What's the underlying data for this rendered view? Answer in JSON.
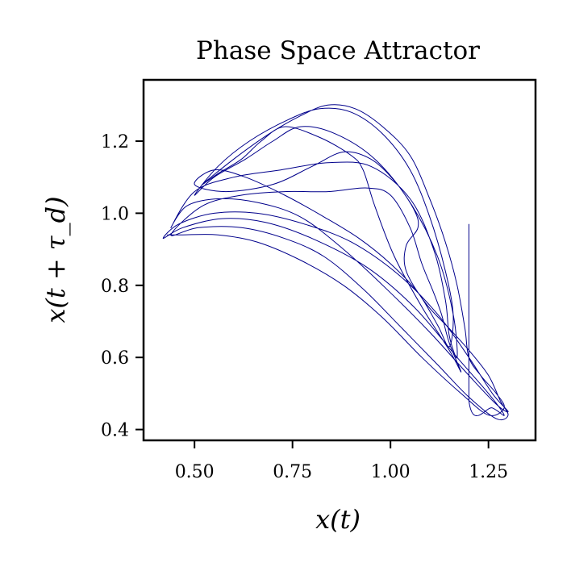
{
  "chart_data": {
    "type": "line",
    "title": "Phase Space Attractor",
    "xlabel": "x(t)",
    "ylabel": "x(t + τ_d)",
    "xlim": [
      0.37,
      1.37
    ],
    "ylim": [
      0.37,
      1.37
    ],
    "xticks": [
      0.5,
      0.75,
      1.0,
      1.25
    ],
    "yticks": [
      0.4,
      0.6,
      0.8,
      1.0,
      1.2
    ],
    "xtick_labels": [
      "0.50",
      "0.75",
      "1.00",
      "1.25"
    ],
    "ytick_labels": [
      "0.4",
      "0.6",
      "0.8",
      "1.0",
      "1.2"
    ],
    "grid": false,
    "line_color": "#00008b",
    "series": [
      {
        "points": [
          [
            1.2,
            0.97
          ],
          [
            1.2,
            0.48
          ],
          [
            1.26,
            0.46
          ],
          [
            1.29,
            0.44
          ],
          [
            1.25,
            0.5
          ],
          [
            1.17,
            0.6
          ],
          [
            1.06,
            0.74
          ],
          [
            0.94,
            0.85
          ],
          [
            0.8,
            0.93
          ],
          [
            0.68,
            0.975
          ],
          [
            0.57,
            0.985
          ],
          [
            0.47,
            0.96
          ],
          [
            0.42,
            0.93
          ],
          [
            0.46,
            0.97
          ],
          [
            0.55,
            1.0
          ],
          [
            0.66,
            1.0
          ],
          [
            0.78,
            0.97
          ],
          [
            0.9,
            0.92
          ],
          [
            1.02,
            0.83
          ],
          [
            1.12,
            0.72
          ],
          [
            1.2,
            0.6
          ],
          [
            1.26,
            0.5
          ],
          [
            1.3,
            0.45
          ],
          [
            1.27,
            0.47
          ],
          [
            1.2,
            0.55
          ],
          [
            1.1,
            0.67
          ],
          [
            0.99,
            0.79
          ],
          [
            0.88,
            0.9
          ],
          [
            0.77,
            0.99
          ],
          [
            0.66,
            1.03
          ],
          [
            0.56,
            1.04
          ],
          [
            0.48,
            1.02
          ],
          [
            0.44,
            0.96
          ],
          [
            0.5,
            1.06
          ],
          [
            0.6,
            1.1
          ],
          [
            0.72,
            1.12
          ],
          [
            0.84,
            1.14
          ],
          [
            0.95,
            1.13
          ],
          [
            1.05,
            1.04
          ],
          [
            1.11,
            0.9
          ],
          [
            1.14,
            0.76
          ],
          [
            1.15,
            0.66
          ],
          [
            1.17,
            0.6
          ],
          [
            1.16,
            0.72
          ],
          [
            1.12,
            0.88
          ],
          [
            1.05,
            1.03
          ],
          [
            0.96,
            1.15
          ],
          [
            0.86,
            1.22
          ],
          [
            0.77,
            1.24
          ],
          [
            0.7,
            1.2
          ],
          [
            0.63,
            1.15
          ],
          [
            0.55,
            1.1
          ],
          [
            0.5,
            1.05
          ],
          [
            0.56,
            1.13
          ],
          [
            0.64,
            1.2
          ],
          [
            0.74,
            1.26
          ],
          [
            0.82,
            1.29
          ],
          [
            0.9,
            1.28
          ],
          [
            0.98,
            1.22
          ],
          [
            1.05,
            1.12
          ],
          [
            1.1,
            0.99
          ],
          [
            1.14,
            0.84
          ],
          [
            1.16,
            0.72
          ],
          [
            1.15,
            0.63
          ],
          [
            1.12,
            0.69
          ],
          [
            1.07,
            0.78
          ],
          [
            1.0,
            0.86
          ],
          [
            0.92,
            0.93
          ],
          [
            0.83,
            0.99
          ],
          [
            0.73,
            1.05
          ],
          [
            0.63,
            1.1
          ],
          [
            0.55,
            1.12
          ],
          [
            0.5,
            1.08
          ],
          [
            0.58,
            1.06
          ],
          [
            0.7,
            1.08
          ],
          [
            0.8,
            1.13
          ],
          [
            0.88,
            1.17
          ],
          [
            0.95,
            1.15
          ],
          [
            1.01,
            1.09
          ],
          [
            1.06,
            1.01
          ],
          [
            1.07,
            0.96
          ],
          [
            1.04,
            0.91
          ],
          [
            1.04,
            0.84
          ],
          [
            1.09,
            0.75
          ],
          [
            1.15,
            0.68
          ],
          [
            1.2,
            0.62
          ],
          [
            1.25,
            0.55
          ],
          [
            1.28,
            0.48
          ],
          [
            1.3,
            0.44
          ],
          [
            1.27,
            0.43
          ],
          [
            1.2,
            0.49
          ],
          [
            1.12,
            0.58
          ],
          [
            1.03,
            0.68
          ],
          [
            0.93,
            0.79
          ],
          [
            0.83,
            0.88
          ],
          [
            0.73,
            0.93
          ],
          [
            0.62,
            0.96
          ],
          [
            0.51,
            0.96
          ],
          [
            0.44,
            0.94
          ],
          [
            0.52,
            1.02
          ],
          [
            0.62,
            1.05
          ],
          [
            0.73,
            1.06
          ],
          [
            0.84,
            1.06
          ],
          [
            0.94,
            1.07
          ],
          [
            1.0,
            1.05
          ],
          [
            1.05,
            0.96
          ],
          [
            1.08,
            0.86
          ],
          [
            1.11,
            0.78
          ],
          [
            1.13,
            0.72
          ],
          [
            1.15,
            0.64
          ],
          [
            1.18,
            0.56
          ],
          [
            1.15,
            0.62
          ],
          [
            1.08,
            0.74
          ],
          [
            1.01,
            0.88
          ],
          [
            0.96,
            1.02
          ],
          [
            0.93,
            1.12
          ],
          [
            0.9,
            1.16
          ],
          [
            0.82,
            1.21
          ],
          [
            0.73,
            1.24
          ],
          [
            0.67,
            1.2
          ],
          [
            0.62,
            1.15
          ],
          [
            0.56,
            1.11
          ],
          [
            0.52,
            1.08
          ],
          [
            0.6,
            1.15
          ],
          [
            0.69,
            1.22
          ],
          [
            0.77,
            1.27
          ],
          [
            0.84,
            1.3
          ],
          [
            0.91,
            1.29
          ],
          [
            0.98,
            1.24
          ],
          [
            1.05,
            1.16
          ],
          [
            1.1,
            1.04
          ],
          [
            1.14,
            0.92
          ],
          [
            1.17,
            0.8
          ],
          [
            1.19,
            0.68
          ],
          [
            1.2,
            0.6
          ],
          [
            1.23,
            0.55
          ],
          [
            1.27,
            0.5
          ],
          [
            1.29,
            0.46
          ],
          [
            1.25,
            0.44
          ],
          [
            1.18,
            0.5
          ],
          [
            1.08,
            0.6
          ],
          [
            0.98,
            0.71
          ],
          [
            0.88,
            0.8
          ],
          [
            0.77,
            0.87
          ],
          [
            0.66,
            0.92
          ],
          [
            0.56,
            0.94
          ],
          [
            0.47,
            0.94
          ],
          [
            0.43,
            0.94
          ]
        ]
      }
    ]
  }
}
